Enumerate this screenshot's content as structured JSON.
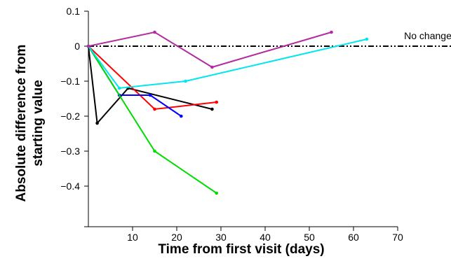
{
  "chart_data": {
    "type": "line",
    "title": "",
    "xlabel": "Time from first visit (days)",
    "ylabel_lines": [
      "Absolute difference from",
      "starting value"
    ],
    "xlim": [
      0,
      70
    ],
    "ylim": [
      -0.5,
      0.1
    ],
    "x_ticks": [
      10,
      20,
      30,
      40,
      50,
      60,
      70
    ],
    "y_ticks": [
      0.1,
      0,
      -0.1,
      -0.2,
      -0.3,
      -0.4
    ],
    "y_tick_labels": [
      "0.1",
      "0",
      "−0.1",
      "−0.2",
      "−0.3",
      "−0.4"
    ],
    "grid": false,
    "reference_line": {
      "y": 0,
      "label": "No change",
      "style": "dash-dot-dot",
      "color": "#000000"
    },
    "series": [
      {
        "color": "#000000",
        "x": [
          0,
          2,
          9,
          28
        ],
        "y": [
          0,
          -0.22,
          -0.12,
          -0.18
        ]
      },
      {
        "color": "#ff0000",
        "x": [
          0,
          15,
          29
        ],
        "y": [
          0,
          -0.18,
          -0.16
        ]
      },
      {
        "color": "#0000ff",
        "x": [
          0,
          7,
          14,
          21
        ],
        "y": [
          0,
          -0.14,
          -0.14,
          -0.2
        ]
      },
      {
        "color": "#00dd00",
        "x": [
          0,
          15,
          29
        ],
        "y": [
          0,
          -0.3,
          -0.42
        ]
      },
      {
        "color": "#00e5ee",
        "x": [
          0,
          7,
          22,
          63
        ],
        "y": [
          0,
          -0.12,
          -0.1,
          0.02
        ]
      },
      {
        "color": "#b22ba0",
        "x": [
          0,
          15,
          28,
          55
        ],
        "y": [
          0,
          0.04,
          -0.06,
          0.04
        ]
      }
    ]
  }
}
